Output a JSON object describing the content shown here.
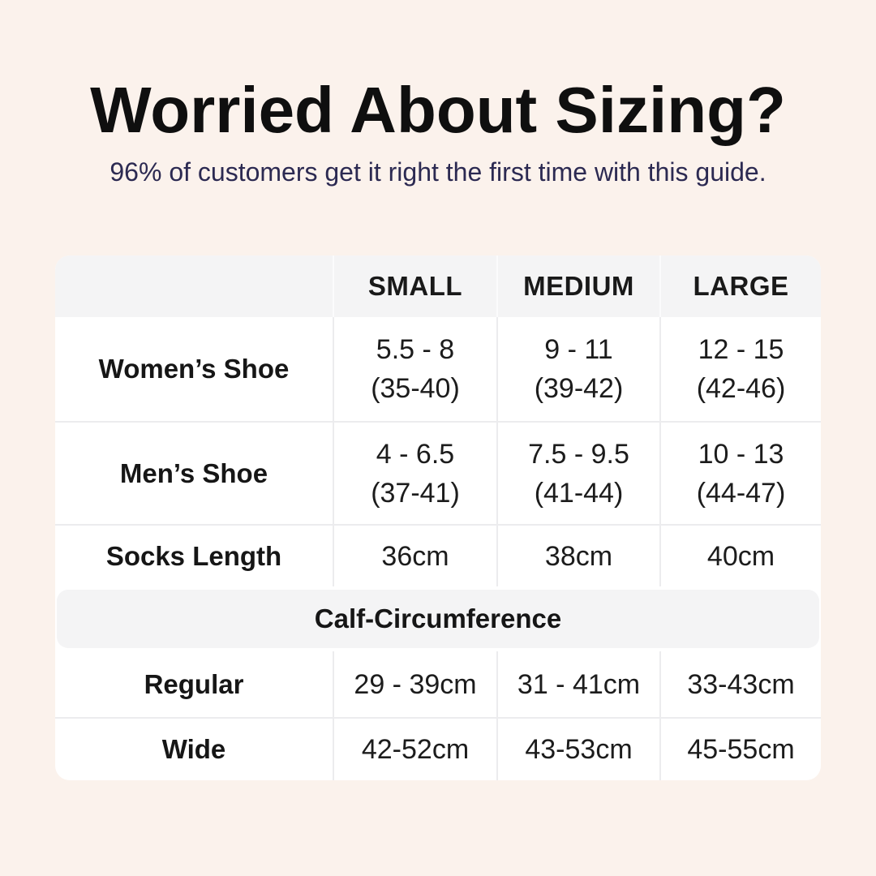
{
  "page": {
    "title": "Worried About Sizing?",
    "subtitle": "96% of customers get it right the first time with this guide."
  },
  "colors": {
    "background": "#fbf2ec",
    "card": "#ffffff",
    "band": "#f4f4f5",
    "divider": "#ececee",
    "title_text": "#0f0f0f",
    "subtitle_text": "#2c2a52",
    "cell_text": "#1c1c1c"
  },
  "size_table": {
    "columns": [
      "",
      "SMALL",
      "MEDIUM",
      "LARGE"
    ],
    "rows": {
      "women": {
        "label": "Women’s Shoe",
        "small": {
          "main": "5.5 - 8",
          "sub": "(35-40)"
        },
        "medium": {
          "main": "9 - 11",
          "sub": "(39-42)"
        },
        "large": {
          "main": "12 - 15",
          "sub": "(42-46)"
        }
      },
      "men": {
        "label": "Men’s Shoe",
        "small": {
          "main": "4 - 6.5",
          "sub": "(37-41)"
        },
        "medium": {
          "main": "7.5 - 9.5",
          "sub": "(41-44)"
        },
        "large": {
          "main": "10 - 13",
          "sub": "(44-47)"
        }
      },
      "socks": {
        "label": "Socks Length",
        "small": {
          "main": "36cm"
        },
        "medium": {
          "main": "38cm"
        },
        "large": {
          "main": "40cm"
        }
      }
    },
    "section_header": "Calf-Circumference",
    "calf_rows": {
      "regular": {
        "label": "Regular",
        "small": "29 - 39cm",
        "medium": "31 - 41cm",
        "large": "33-43cm"
      },
      "wide": {
        "label": "Wide",
        "small": "42-52cm",
        "medium": "43-53cm",
        "large": "45-55cm"
      }
    }
  }
}
